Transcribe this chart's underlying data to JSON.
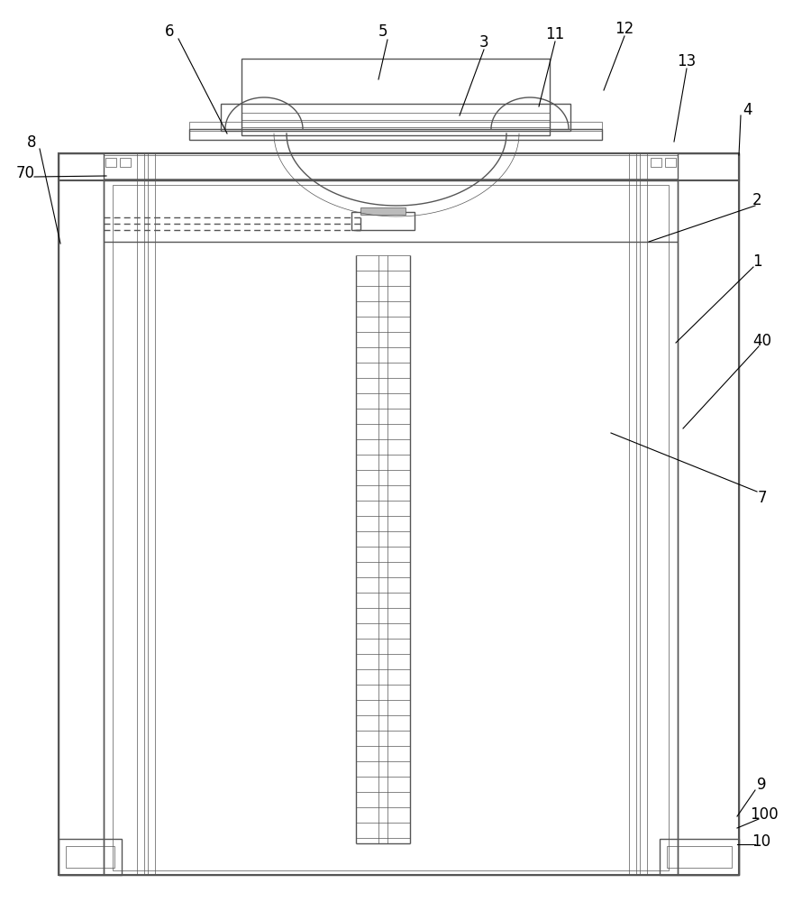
{
  "bg": "#ffffff",
  "lc": "#555555",
  "lw": 1.0,
  "lw2": 1.5,
  "lw3": 0.5,
  "figsize": [
    8.8,
    10.0
  ],
  "dpi": 100,
  "labels": {
    "8": [
      35,
      160,
      68,
      270
    ],
    "70": [
      35,
      193,
      75,
      202
    ],
    "6": [
      192,
      35,
      242,
      155
    ],
    "5": [
      430,
      35,
      420,
      95
    ],
    "3": [
      543,
      47,
      510,
      130
    ],
    "11": [
      622,
      38,
      598,
      115
    ],
    "12": [
      698,
      32,
      678,
      100
    ],
    "13": [
      768,
      68,
      748,
      158
    ],
    "4": [
      832,
      122,
      820,
      175
    ],
    "2": [
      842,
      220,
      800,
      268
    ],
    "1": [
      842,
      290,
      808,
      380
    ],
    "40": [
      848,
      378,
      762,
      480
    ],
    "7": [
      848,
      555,
      682,
      490
    ],
    "9": [
      848,
      870,
      820,
      905
    ],
    "100": [
      848,
      902,
      820,
      918
    ],
    "10": [
      848,
      932,
      818,
      940
    ]
  }
}
